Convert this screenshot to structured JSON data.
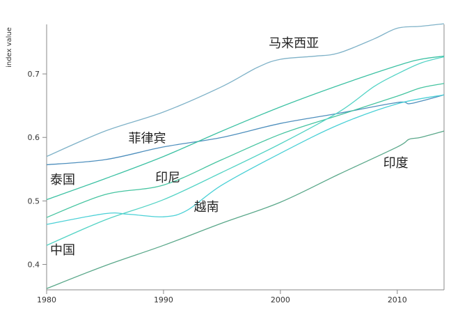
{
  "chart_data": {
    "type": "line",
    "title": "",
    "xlabel": "",
    "ylabel": "index value",
    "xlim": [
      1980,
      2014
    ],
    "ylim": [
      0.36,
      0.778
    ],
    "x_ticks": [
      1980,
      1990,
      2000,
      2010
    ],
    "y_ticks": [
      0.4,
      0.5,
      0.6,
      0.7
    ],
    "grid": false,
    "legend": "direct labels",
    "series": [
      {
        "name": "马来西亚",
        "color": "#7fb2c8",
        "points": [
          [
            1980,
            0.57
          ],
          [
            1985,
            0.61
          ],
          [
            1990,
            0.64
          ],
          [
            1995,
            0.68
          ],
          [
            1998,
            0.71
          ],
          [
            2000,
            0.723
          ],
          [
            2003,
            0.728
          ],
          [
            2005,
            0.733
          ],
          [
            2008,
            0.755
          ],
          [
            2010,
            0.772
          ],
          [
            2012,
            0.775
          ],
          [
            2014,
            0.779
          ]
        ]
      },
      {
        "name": "菲律宾",
        "color": "#4e8fbd",
        "points": [
          [
            1980,
            0.557
          ],
          [
            1985,
            0.565
          ],
          [
            1990,
            0.585
          ],
          [
            1995,
            0.6
          ],
          [
            2000,
            0.622
          ],
          [
            2005,
            0.638
          ],
          [
            2010,
            0.655
          ],
          [
            2011,
            0.653
          ],
          [
            2012,
            0.657
          ],
          [
            2014,
            0.667
          ]
        ]
      },
      {
        "name": "泰国",
        "color": "#3cc1a3",
        "points": [
          [
            1980,
            0.502
          ],
          [
            1985,
            0.535
          ],
          [
            1990,
            0.57
          ],
          [
            1995,
            0.61
          ],
          [
            2000,
            0.648
          ],
          [
            2005,
            0.682
          ],
          [
            2010,
            0.713
          ],
          [
            2012,
            0.723
          ],
          [
            2014,
            0.728
          ]
        ]
      },
      {
        "name": "印尼",
        "color": "#45c4a0",
        "points": [
          [
            1980,
            0.474
          ],
          [
            1985,
            0.51
          ],
          [
            1990,
            0.525
          ],
          [
            1995,
            0.565
          ],
          [
            2000,
            0.605
          ],
          [
            2005,
            0.635
          ],
          [
            2010,
            0.665
          ],
          [
            2012,
            0.678
          ],
          [
            2014,
            0.685
          ]
        ]
      },
      {
        "name": "越南",
        "color": "#4ad0d6",
        "points": [
          [
            1980,
            0.463
          ],
          [
            1985,
            0.48
          ],
          [
            1987,
            0.479
          ],
          [
            1990,
            0.475
          ],
          [
            1992,
            0.485
          ],
          [
            1995,
            0.525
          ],
          [
            2000,
            0.575
          ],
          [
            2005,
            0.62
          ],
          [
            2010,
            0.653
          ],
          [
            2014,
            0.667
          ]
        ]
      },
      {
        "name": "中国",
        "color": "#53d3c5",
        "points": [
          [
            1980,
            0.43
          ],
          [
            1985,
            0.47
          ],
          [
            1990,
            0.502
          ],
          [
            1995,
            0.545
          ],
          [
            2000,
            0.59
          ],
          [
            2005,
            0.64
          ],
          [
            2008,
            0.68
          ],
          [
            2010,
            0.7
          ],
          [
            2012,
            0.717
          ],
          [
            2014,
            0.727
          ]
        ]
      },
      {
        "name": "印度",
        "color": "#5aa88a",
        "points": [
          [
            1980,
            0.362
          ],
          [
            1985,
            0.398
          ],
          [
            1990,
            0.43
          ],
          [
            1995,
            0.465
          ],
          [
            2000,
            0.498
          ],
          [
            2005,
            0.542
          ],
          [
            2010,
            0.585
          ],
          [
            2011,
            0.597
          ],
          [
            2012,
            0.6
          ],
          [
            2014,
            0.61
          ]
        ]
      }
    ],
    "labels": [
      {
        "text": "马来西亚",
        "x": 1999,
        "y": 0.742
      },
      {
        "text": "菲律宾",
        "x": 1987,
        "y": 0.592
      },
      {
        "text": "泰国",
        "x": 1980.3,
        "y": 0.527
      },
      {
        "text": "印尼",
        "x": 1989.3,
        "y": 0.53
      },
      {
        "text": "越南",
        "x": 1992.6,
        "y": 0.484
      },
      {
        "text": "中国",
        "x": 1980.3,
        "y": 0.416
      },
      {
        "text": "印度",
        "x": 2008.8,
        "y": 0.553
      }
    ]
  }
}
